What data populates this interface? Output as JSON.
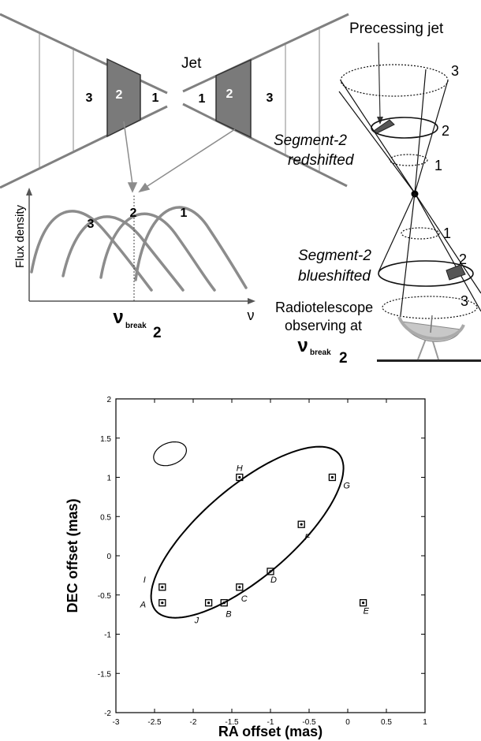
{
  "top": {
    "jet_label": "Jet",
    "precessing_label": "Precessing jet",
    "left_segments": [
      "3",
      "2",
      "1"
    ],
    "right_segments": [
      "1",
      "2",
      "3"
    ],
    "cone_upper_labels": [
      "3",
      "2",
      "1"
    ],
    "cone_lower_labels": [
      "1",
      "2",
      "3"
    ],
    "redshift_line1": "Segment-2",
    "redshift_line2": "redshifted",
    "blueshift_line1": "Segment-2",
    "blueshift_line2": "blueshifted",
    "telescope_line1": "Radiotelescope",
    "telescope_line2": "observing at",
    "telescope_nu": "ν",
    "telescope_sub": "break",
    "telescope_num": "2",
    "spectrum_ylabel": "Flux density",
    "spectrum_xlabel": "ν",
    "spectrum_nu": "ν",
    "spectrum_sub": "break",
    "spectrum_num": "2",
    "spectrum_curve_labels": [
      "3",
      "2",
      "1"
    ],
    "colors": {
      "segment_fill": "#7a7a7a",
      "jet_line": "#808080",
      "curve": "#8c8c8c"
    }
  },
  "chart_data": {
    "type": "scatter",
    "xlabel": "RA offset (mas)",
    "ylabel": "DEC offset (mas)",
    "xlim": [
      -3,
      1
    ],
    "ylim": [
      -2,
      2
    ],
    "xticks": [
      "-3",
      "-2.5",
      "-2",
      "-1.5",
      "-1",
      "-0.5",
      "0",
      "0.5",
      "1"
    ],
    "yticks": [
      "-2",
      "-1.5",
      "-1",
      "-0.5",
      "0",
      "0.5",
      "1",
      "1.5",
      "2"
    ],
    "points": [
      {
        "label": "A",
        "x": -2.4,
        "y": -0.6
      },
      {
        "label": "I",
        "x": -2.4,
        "y": -0.4
      },
      {
        "label": "J",
        "x": -1.8,
        "y": -0.6
      },
      {
        "label": "B",
        "x": -1.6,
        "y": -0.6
      },
      {
        "label": "C",
        "x": -1.4,
        "y": -0.4
      },
      {
        "label": "D",
        "x": -1.0,
        "y": -0.2
      },
      {
        "label": "F",
        "x": -0.6,
        "y": 0.4
      },
      {
        "label": "G",
        "x": -0.2,
        "y": 1.0
      },
      {
        "label": "H",
        "x": -1.4,
        "y": 1.0
      },
      {
        "label": "E",
        "x": 0.2,
        "y": -0.6
      }
    ],
    "fit_ellipse": {
      "center": [
        -1.3,
        0.3
      ],
      "semi_major": 1.55,
      "semi_minor": 0.58,
      "angle_deg": 40
    },
    "beam_ellipse": {
      "center": [
        -2.3,
        1.3
      ],
      "semi_major": 0.22,
      "semi_minor": 0.14,
      "angle_deg": 20
    },
    "grid": false,
    "legend": "none"
  }
}
